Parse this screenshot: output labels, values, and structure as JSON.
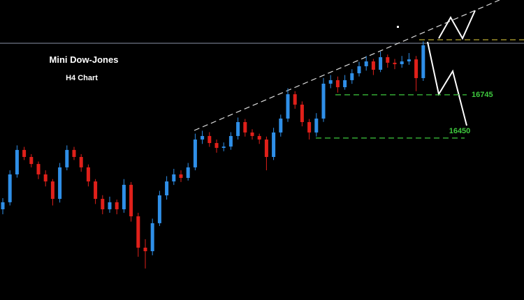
{
  "chart_data": {
    "type": "candlestick",
    "title": "Mini Dow-Jones",
    "subtitle": "H4 Chart",
    "open": [
      15964,
      16012,
      16202,
      16369,
      16321,
      16273,
      16202,
      16154,
      16035,
      16250,
      16369,
      16321,
      16250,
      16154,
      16035,
      15964,
      16012,
      15964,
      16131,
      15916,
      15702,
      15678,
      15869,
      16059,
      16154,
      16202,
      16178,
      16250,
      16440,
      16464,
      16416,
      16383,
      16392,
      16464,
      16559,
      16488,
      16464,
      16440,
      16321,
      16488,
      16583,
      16749,
      16678,
      16559,
      16488,
      16583,
      16821,
      16845,
      16797,
      16845,
      16892,
      16940,
      16973,
      16916,
      17002,
      16964,
      16954,
      16973,
      16987,
      16859
    ],
    "high": [
      16040,
      16230,
      16400,
      16390,
      16340,
      16290,
      16230,
      16170,
      16280,
      16400,
      16390,
      16340,
      16270,
      16170,
      16060,
      16050,
      16030,
      16170,
      16150,
      15940,
      15760,
      15900,
      16090,
      16190,
      16240,
      16230,
      16280,
      16480,
      16500,
      16490,
      16440,
      16420,
      16490,
      16590,
      16580,
      16510,
      16480,
      16460,
      16520,
      16610,
      16790,
      16770,
      16700,
      16580,
      16620,
      16860,
      16880,
      16870,
      16880,
      16920,
      16970,
      17010,
      16990,
      17040,
      17020,
      16990,
      17010,
      17030,
      17010,
      17110
    ],
    "low": [
      15930,
      15990,
      16180,
      16300,
      16250,
      16170,
      16120,
      15990,
      16010,
      16230,
      16300,
      16220,
      16120,
      16000,
      15930,
      15940,
      15930,
      15940,
      15880,
      15640,
      15560,
      15650,
      15850,
      16030,
      16130,
      16150,
      16160,
      16230,
      16410,
      16390,
      16350,
      16360,
      16370,
      16440,
      16460,
      16440,
      16410,
      16230,
      16300,
      16460,
      16560,
      16650,
      16530,
      16440,
      16460,
      16560,
      16790,
      16760,
      16780,
      16820,
      16870,
      16910,
      16880,
      16900,
      16930,
      16920,
      16930,
      16950,
      16770,
      16840
    ],
    "close": [
      16012,
      16202,
      16369,
      16321,
      16273,
      16202,
      16154,
      16035,
      16250,
      16369,
      16321,
      16250,
      16154,
      16035,
      15964,
      16012,
      15964,
      16131,
      15916,
      15702,
      15678,
      15869,
      16059,
      16154,
      16202,
      16178,
      16250,
      16440,
      16464,
      16416,
      16383,
      16392,
      16464,
      16559,
      16488,
      16464,
      16440,
      16321,
      16488,
      16583,
      16749,
      16678,
      16559,
      16488,
      16583,
      16821,
      16845,
      16797,
      16845,
      16892,
      16940,
      16973,
      16916,
      17002,
      16964,
      16954,
      16973,
      16987,
      16859,
      17083
    ],
    "ylim": [
      15345,
      17392
    ],
    "up_color": "#2f8fe8",
    "down_color": "#e0201a",
    "levels": [
      16745,
      16450
    ],
    "level_color": "#3ec93e"
  }
}
